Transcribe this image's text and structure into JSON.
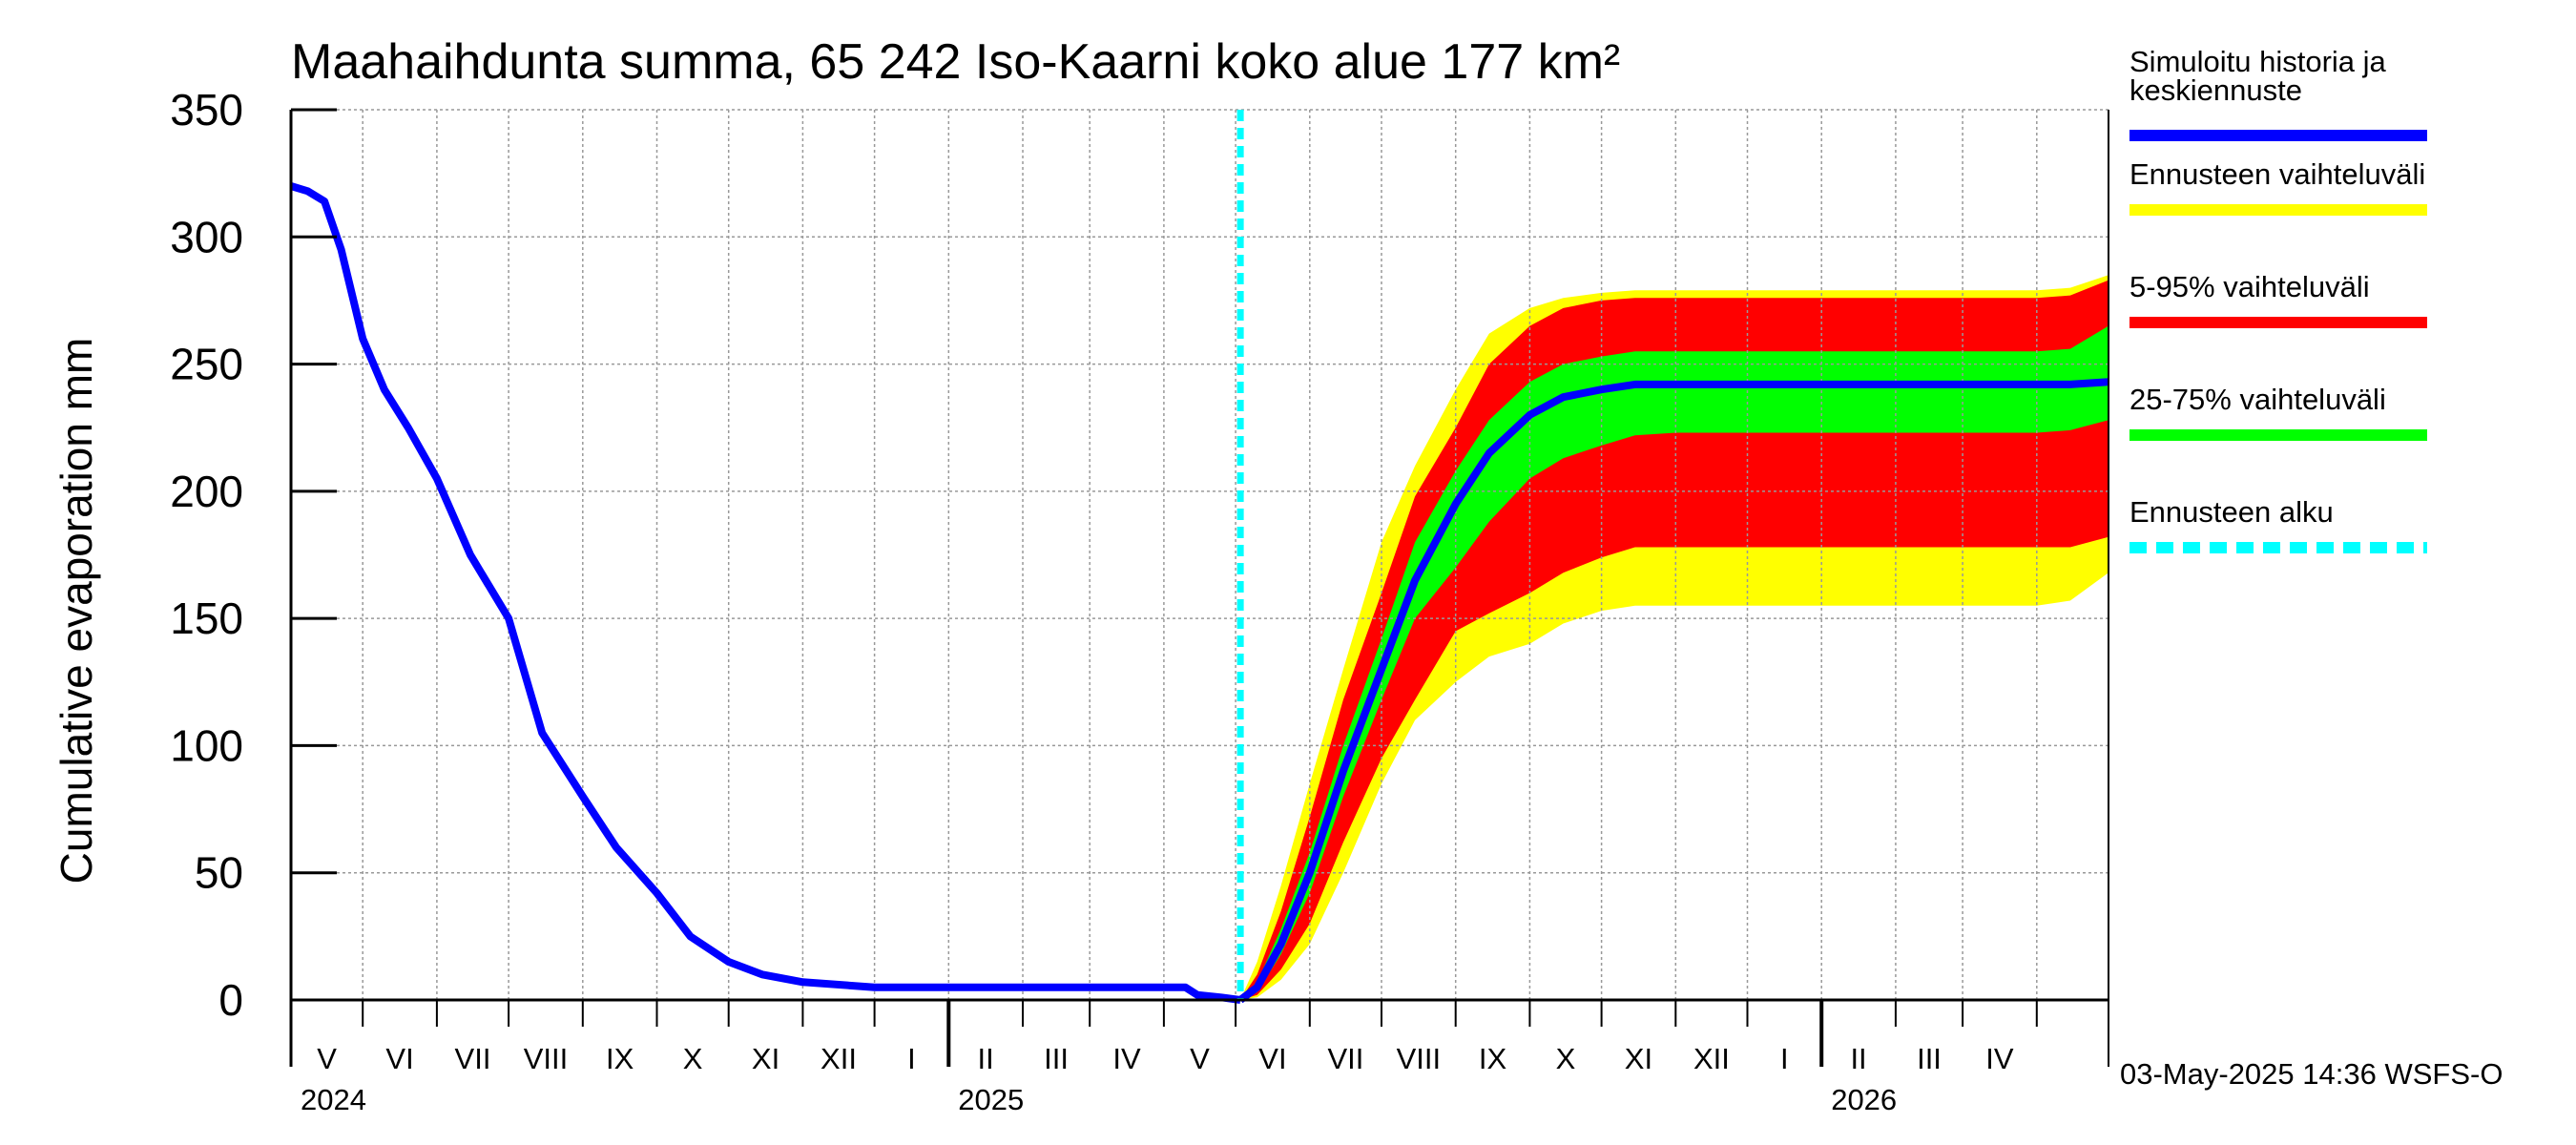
{
  "chart_data": {
    "type": "area",
    "title": "Maahaihdunta summa, 65 242 Iso-Kaarni koko alue 177 km²",
    "ylabel": "Cumulative evaporation   mm",
    "xlabel": "",
    "ylim": [
      0,
      350
    ],
    "yticks": [
      "0",
      "50",
      "100",
      "150",
      "200",
      "250",
      "300",
      "350"
    ],
    "xlim": [
      "2024-04-01",
      "2026-05-01"
    ],
    "month_labels": [
      "V",
      "VI",
      "VII",
      "VIII",
      "IX",
      "X",
      "XI",
      "XII",
      "I",
      "II",
      "III",
      "IV",
      "V",
      "VI",
      "VII",
      "VIII",
      "IX",
      "X",
      "XI",
      "XII",
      "I",
      "II",
      "III",
      "IV"
    ],
    "year_labels": [
      "2024",
      "2025",
      "2026"
    ],
    "grid": true,
    "legend_position": "right",
    "forecast_start": "2025-05-03",
    "history": {
      "name": "Simuloitu historia ja keskiennuste",
      "dates": [
        "2024-04-01",
        "2024-04-08",
        "2024-04-15",
        "2024-04-22",
        "2024-05-01",
        "2024-05-10",
        "2024-05-20",
        "2024-06-01",
        "2024-06-15",
        "2024-07-01",
        "2024-07-15",
        "2024-08-01",
        "2024-08-15",
        "2024-09-01",
        "2024-09-15",
        "2024-10-01",
        "2024-10-15",
        "2024-11-01",
        "2024-12-01",
        "2025-01-01",
        "2025-02-01",
        "2025-03-01",
        "2025-04-01",
        "2025-04-10",
        "2025-04-15",
        "2025-04-25",
        "2025-05-03"
      ],
      "values": [
        320,
        318,
        314,
        295,
        260,
        240,
        225,
        205,
        175,
        150,
        105,
        80,
        60,
        42,
        25,
        15,
        10,
        7,
        5,
        5,
        5,
        5,
        5,
        5,
        2,
        1,
        0
      ]
    },
    "forecast": {
      "dates": [
        "2025-05-03",
        "2025-05-10",
        "2025-05-20",
        "2025-06-01",
        "2025-06-15",
        "2025-07-01",
        "2025-07-15",
        "2025-08-01",
        "2025-08-15",
        "2025-09-01",
        "2025-09-15",
        "2025-10-01",
        "2025-10-15",
        "2025-11-01",
        "2025-12-01",
        "2026-01-01",
        "2026-02-01",
        "2026-03-01",
        "2026-04-01",
        "2026-04-15",
        "2026-05-01"
      ],
      "median": [
        0,
        5,
        22,
        50,
        90,
        130,
        165,
        195,
        215,
        230,
        237,
        240,
        242,
        242,
        242,
        242,
        242,
        242,
        242,
        242,
        243
      ],
      "p25": [
        0,
        3,
        18,
        42,
        80,
        118,
        150,
        170,
        188,
        205,
        213,
        218,
        222,
        223,
        223,
        223,
        223,
        223,
        223,
        224,
        228
      ],
      "p75": [
        0,
        7,
        28,
        58,
        100,
        142,
        180,
        208,
        228,
        243,
        250,
        253,
        255,
        255,
        255,
        255,
        255,
        255,
        255,
        256,
        265
      ],
      "p05": [
        0,
        2,
        12,
        30,
        62,
        95,
        118,
        145,
        152,
        160,
        168,
        174,
        178,
        178,
        178,
        178,
        178,
        178,
        178,
        178,
        182
      ],
      "p95": [
        0,
        10,
        35,
        72,
        118,
        160,
        198,
        225,
        250,
        265,
        272,
        275,
        276,
        276,
        276,
        276,
        276,
        276,
        276,
        277,
        283
      ],
      "min": [
        0,
        1,
        8,
        22,
        50,
        85,
        110,
        125,
        135,
        140,
        148,
        153,
        155,
        155,
        155,
        155,
        155,
        155,
        155,
        157,
        168
      ],
      "max": [
        0,
        15,
        45,
        85,
        130,
        180,
        210,
        240,
        262,
        272,
        276,
        278,
        279,
        279,
        279,
        279,
        279,
        279,
        279,
        280,
        285
      ]
    },
    "legend": [
      {
        "label": "Simuloitu historia ja keskiennuste",
        "color": "#0000ff"
      },
      {
        "label": "Ennusteen vaihteluväli",
        "color": "#ffff00"
      },
      {
        "label": "5-95% vaihteluväli",
        "color": "#ff0000"
      },
      {
        "label": "25-75% vaihteluväli",
        "color": "#00ff00"
      },
      {
        "label": "Ennusteen alku",
        "color": "#00ffff"
      }
    ],
    "colors": {
      "history": "#0000ff",
      "range": "#ffff00",
      "p5_95": "#ff0000",
      "p25_75": "#00ff00",
      "forecast_start": "#00ffff",
      "grid": "#999999"
    }
  },
  "footer": "03-May-2025 14:36 WSFS-O"
}
